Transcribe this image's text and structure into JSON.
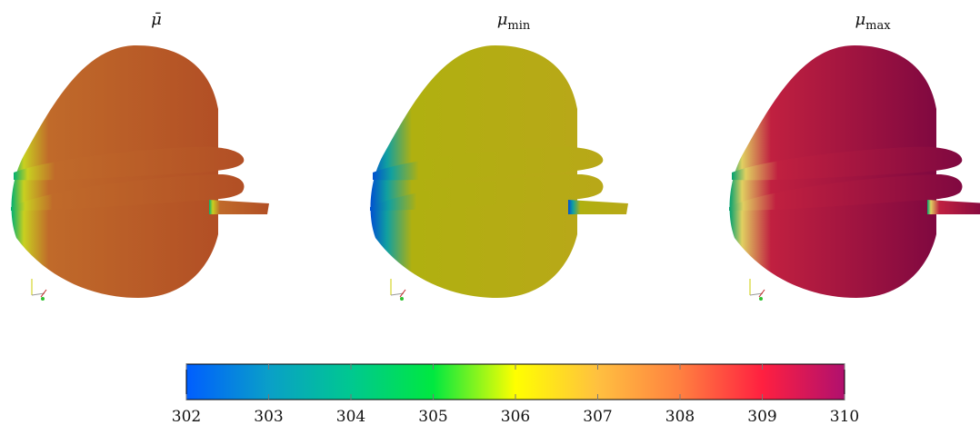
{
  "panels": [
    {
      "symbol": "μ̄"
    },
    {
      "symbol": "μ",
      "subscript": "min"
    },
    {
      "symbol": "μ",
      "subscript": "max"
    }
  ],
  "colorbar": {
    "range": [
      302,
      310
    ],
    "ticks": [
      302,
      303,
      304,
      305,
      306,
      307,
      308,
      309,
      310
    ],
    "colors": [
      "#005eff",
      "#0a9fc8",
      "#00c890",
      "#00e840",
      "#ffff00",
      "#ffc040",
      "#ff8040",
      "#ff2040",
      "#b0106e"
    ]
  }
}
